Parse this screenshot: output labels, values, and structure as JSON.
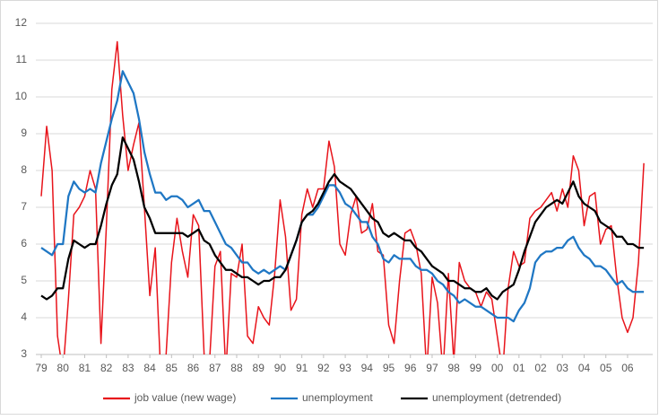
{
  "chart_data": {
    "type": "line",
    "categories": [
      "79",
      null,
      null,
      null,
      "80",
      null,
      null,
      null,
      "81",
      null,
      null,
      null,
      "82",
      null,
      null,
      null,
      "83",
      null,
      null,
      null,
      "84",
      null,
      null,
      null,
      "85",
      null,
      null,
      null,
      "86",
      null,
      null,
      null,
      "87",
      null,
      null,
      null,
      "88",
      null,
      null,
      null,
      "89",
      null,
      null,
      null,
      "90",
      null,
      null,
      null,
      "91",
      null,
      null,
      null,
      "92",
      null,
      null,
      null,
      "93",
      null,
      null,
      null,
      "94",
      null,
      null,
      null,
      "95",
      null,
      null,
      null,
      "96",
      null,
      null,
      null,
      "97",
      null,
      null,
      null,
      "98",
      null,
      null,
      null,
      "99",
      null,
      null,
      null,
      "00",
      null,
      null,
      null,
      "01",
      null,
      null,
      null,
      "02",
      null,
      null,
      null,
      "03",
      null,
      null,
      null,
      "04",
      null,
      null,
      null,
      "05",
      null,
      null,
      null,
      "06",
      null,
      null,
      null
    ],
    "series": [
      {
        "name": "job value (new wage)",
        "color": "#e8141b",
        "values": [
          7.3,
          9.2,
          8.0,
          3.5,
          2.5,
          4.5,
          6.8,
          7.0,
          7.3,
          8.0,
          7.5,
          3.3,
          6.5,
          10.2,
          11.5,
          9.5,
          8.0,
          8.7,
          9.3,
          7.0,
          4.6,
          5.9,
          2.5,
          3.0,
          5.5,
          6.7,
          5.8,
          5.1,
          6.8,
          6.5,
          3.0,
          2.8,
          5.4,
          5.8,
          2.5,
          5.2,
          5.1,
          6.0,
          3.5,
          3.3,
          4.3,
          4.0,
          3.8,
          5.2,
          7.2,
          6.2,
          4.2,
          4.5,
          6.8,
          7.5,
          7.0,
          7.5,
          7.5,
          8.8,
          8.1,
          6.0,
          5.7,
          6.8,
          7.3,
          6.3,
          6.4,
          7.1,
          5.8,
          5.7,
          3.8,
          3.3,
          5.0,
          6.3,
          6.4,
          6.0,
          5.2,
          2.5,
          5.1,
          4.4,
          2.5,
          5.2,
          2.8,
          5.5,
          5.0,
          4.8,
          4.7,
          4.3,
          4.7,
          4.5,
          3.5,
          2.5,
          4.8,
          5.8,
          5.4,
          5.5,
          6.7,
          6.9,
          7.0,
          7.2,
          7.4,
          6.9,
          7.5,
          7.0,
          8.4,
          8.0,
          6.5,
          7.3,
          7.4,
          6.0,
          6.4,
          6.5,
          5.1,
          4.0,
          3.6,
          4.0,
          5.5,
          8.2
        ]
      },
      {
        "name": "unemployment",
        "color": "#1f77c4",
        "values": [
          5.9,
          5.8,
          5.7,
          6.0,
          6.0,
          7.3,
          7.7,
          7.5,
          7.4,
          7.5,
          7.4,
          8.2,
          8.8,
          9.4,
          9.9,
          10.7,
          10.4,
          10.1,
          9.4,
          8.5,
          7.9,
          7.4,
          7.4,
          7.2,
          7.3,
          7.3,
          7.2,
          7.0,
          7.1,
          7.2,
          6.9,
          6.9,
          6.6,
          6.3,
          6.0,
          5.9,
          5.7,
          5.5,
          5.5,
          5.3,
          5.2,
          5.3,
          5.2,
          5.3,
          5.4,
          5.3,
          5.7,
          6.1,
          6.6,
          6.8,
          6.8,
          7.0,
          7.3,
          7.6,
          7.6,
          7.4,
          7.1,
          7.0,
          6.8,
          6.6,
          6.6,
          6.2,
          6.0,
          5.6,
          5.5,
          5.7,
          5.6,
          5.6,
          5.6,
          5.4,
          5.3,
          5.3,
          5.2,
          5.0,
          4.9,
          4.7,
          4.6,
          4.4,
          4.5,
          4.4,
          4.3,
          4.3,
          4.2,
          4.1,
          4.0,
          4.0,
          4.0,
          3.9,
          4.2,
          4.4,
          4.8,
          5.5,
          5.7,
          5.8,
          5.8,
          5.9,
          5.9,
          6.1,
          6.2,
          5.9,
          5.7,
          5.6,
          5.4,
          5.4,
          5.3,
          5.1,
          4.9,
          5.0,
          4.8,
          4.7,
          4.7,
          4.7
        ]
      },
      {
        "name": "unemployment (detrended)",
        "color": "#000000",
        "values": [
          4.6,
          4.5,
          4.6,
          4.8,
          4.8,
          5.6,
          6.1,
          6.0,
          5.9,
          6.0,
          6.0,
          6.5,
          7.1,
          7.6,
          7.9,
          8.9,
          8.6,
          8.3,
          7.7,
          7.0,
          6.7,
          6.3,
          6.3,
          6.3,
          6.3,
          6.3,
          6.3,
          6.2,
          6.3,
          6.4,
          6.1,
          6.0,
          5.7,
          5.5,
          5.3,
          5.3,
          5.2,
          5.1,
          5.1,
          5.0,
          4.9,
          5.0,
          5.0,
          5.1,
          5.1,
          5.3,
          5.7,
          6.1,
          6.6,
          6.8,
          6.9,
          7.1,
          7.4,
          7.7,
          7.9,
          7.7,
          7.6,
          7.5,
          7.3,
          7.1,
          6.9,
          6.7,
          6.6,
          6.3,
          6.2,
          6.3,
          6.2,
          6.1,
          6.1,
          5.9,
          5.8,
          5.6,
          5.4,
          5.3,
          5.2,
          5.0,
          5.0,
          4.9,
          4.8,
          4.8,
          4.7,
          4.7,
          4.8,
          4.6,
          4.5,
          4.7,
          4.8,
          4.9,
          5.3,
          5.8,
          6.2,
          6.6,
          6.8,
          7.0,
          7.1,
          7.2,
          7.1,
          7.4,
          7.7,
          7.3,
          7.1,
          7.0,
          6.9,
          6.6,
          6.5,
          6.4,
          6.2,
          6.2,
          6.0,
          6.0,
          5.9,
          5.9
        ]
      }
    ],
    "ylim": [
      3,
      12
    ],
    "yticks": [
      3,
      4,
      5,
      6,
      7,
      8,
      9,
      10,
      11,
      12
    ],
    "grid": true,
    "legend": "bottom"
  }
}
